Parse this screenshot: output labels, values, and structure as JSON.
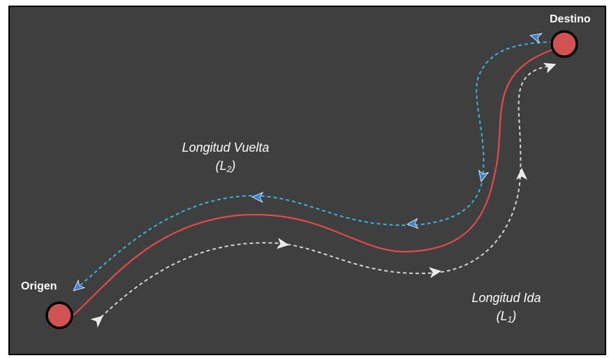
{
  "nodes": {
    "origin": {
      "label": "Origen"
    },
    "destination": {
      "label": "Destino"
    }
  },
  "labels": {
    "return_length": {
      "text": "Longitud Vuelta",
      "symbol_open": "(L",
      "symbol_sub": "2",
      "symbol_close": ")"
    },
    "outbound_length": {
      "text": "Longitud Ida",
      "symbol_open": "(L",
      "symbol_sub": "1",
      "symbol_close": ")"
    }
  },
  "colors": {
    "background": "#3f3f3f",
    "route": "#e04b4b",
    "return_path": "#37b6dd",
    "return_arrow": "#3a7fd8",
    "outbound_path": "#d4d4d4",
    "outbound_arrow": "#e8e8e8",
    "node_fill": "#d05252"
  }
}
